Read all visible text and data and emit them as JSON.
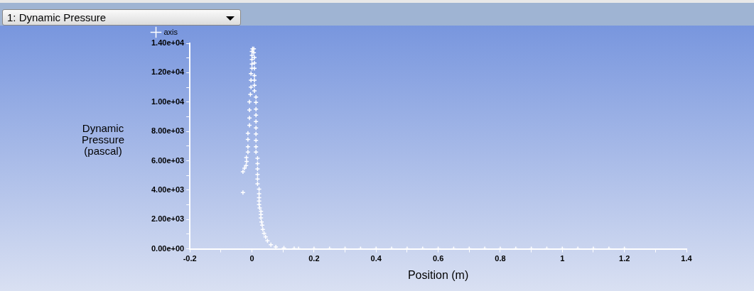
{
  "chart_data": {
    "type": "scatter",
    "title": "1: Dynamic Pressure",
    "xlabel": "Position (m)",
    "ylabel": "Dynamic Pressure (pascal)",
    "xlim": [
      -0.2,
      1.4
    ],
    "ylim": [
      0,
      14000
    ],
    "xticks": [
      -0.2,
      {
        "value": -0.1,
        "label": null
      },
      0,
      {
        "value": 0.1,
        "label": null
      },
      0.2,
      {
        "value": 0.3,
        "label": null
      },
      0.4,
      {
        "value": 0.5,
        "label": null
      },
      0.6,
      {
        "value": 0.7,
        "label": null
      },
      0.8,
      {
        "value": 0.9,
        "label": null
      },
      1,
      {
        "value": 1.1,
        "label": null
      },
      1.2,
      {
        "value": 1.3,
        "label": null
      },
      1.4
    ],
    "yticks": [
      {
        "value": 0,
        "label": "0.00e+00"
      },
      {
        "value": 1000,
        "label": null
      },
      {
        "value": 2000,
        "label": "2.00e+03"
      },
      {
        "value": 3000,
        "label": null
      },
      {
        "value": 4000,
        "label": "4.00e+03"
      },
      {
        "value": 5000,
        "label": null
      },
      {
        "value": 6000,
        "label": "6.00e+03"
      },
      {
        "value": 7000,
        "label": null
      },
      {
        "value": 8000,
        "label": "8.00e+03"
      },
      {
        "value": 9000,
        "label": null
      },
      {
        "value": 10000,
        "label": "1.00e+04"
      },
      {
        "value": 11000,
        "label": null
      },
      {
        "value": 12000,
        "label": "1.20e+04"
      },
      {
        "value": 13000,
        "label": null
      },
      {
        "value": 14000,
        "label": "1.40e+04"
      }
    ],
    "grid": false,
    "legend": "top left",
    "marker": "cross",
    "series": [
      {
        "name": "axis",
        "color": "#ffffff",
        "x": [
          -0.029,
          -0.029,
          -0.024,
          -0.019,
          -0.017,
          -0.018,
          -0.013,
          -0.013,
          -0.013,
          -0.013,
          -0.008,
          -0.008,
          -0.008,
          -0.008,
          -0.005,
          -0.003,
          -0.003,
          -0.003,
          0,
          0,
          0,
          0,
          0,
          0.002,
          0.006,
          0.006,
          0.008,
          0.008,
          0.008,
          0.008,
          0.008,
          0.008,
          0.008,
          0.013,
          0.013,
          0.013,
          0.013,
          0.013,
          0.013,
          0.013,
          0.013,
          0.013,
          0.013,
          0.018,
          0.018,
          0.018,
          0.018,
          0.018,
          0.018,
          0.023,
          0.023,
          0.023,
          0.023,
          0.023,
          0.025,
          0.029,
          0.029,
          0.029,
          0.031,
          0.033,
          0.035,
          0.039,
          0.044,
          0.05,
          0.061,
          0.077,
          0.103,
          0.136,
          0.15,
          0.2,
          0.25,
          0.3,
          0.35,
          0.4,
          0.45,
          0.5,
          0.55,
          0.6,
          0.65,
          0.7,
          0.75,
          0.8,
          0.85,
          0.9,
          0.95,
          1,
          1.05,
          1.1,
          1.15,
          1.2
        ],
        "values": [
          3840,
          5250,
          5490,
          5670,
          5950,
          6220,
          6590,
          6950,
          7450,
          7870,
          8420,
          8910,
          9460,
          10010,
          10520,
          11020,
          11490,
          11930,
          12300,
          12590,
          12900,
          13180,
          13450,
          13630,
          13630,
          13360,
          13030,
          12660,
          12300,
          11800,
          11490,
          11130,
          10760,
          10340,
          9970,
          9520,
          9110,
          8670,
          8240,
          7830,
          7390,
          6950,
          6590,
          6170,
          5800,
          5440,
          5070,
          4760,
          4430,
          4060,
          3750,
          3480,
          3260,
          3020,
          2780,
          2560,
          2340,
          2110,
          1830,
          1610,
          1320,
          1060,
          820,
          550,
          280,
          130,
          55,
          20,
          0,
          0,
          0,
          0,
          0,
          0,
          0,
          0,
          0,
          0,
          0,
          0,
          0,
          0,
          0,
          0,
          0,
          0,
          0,
          0,
          0,
          0
        ]
      }
    ]
  }
}
